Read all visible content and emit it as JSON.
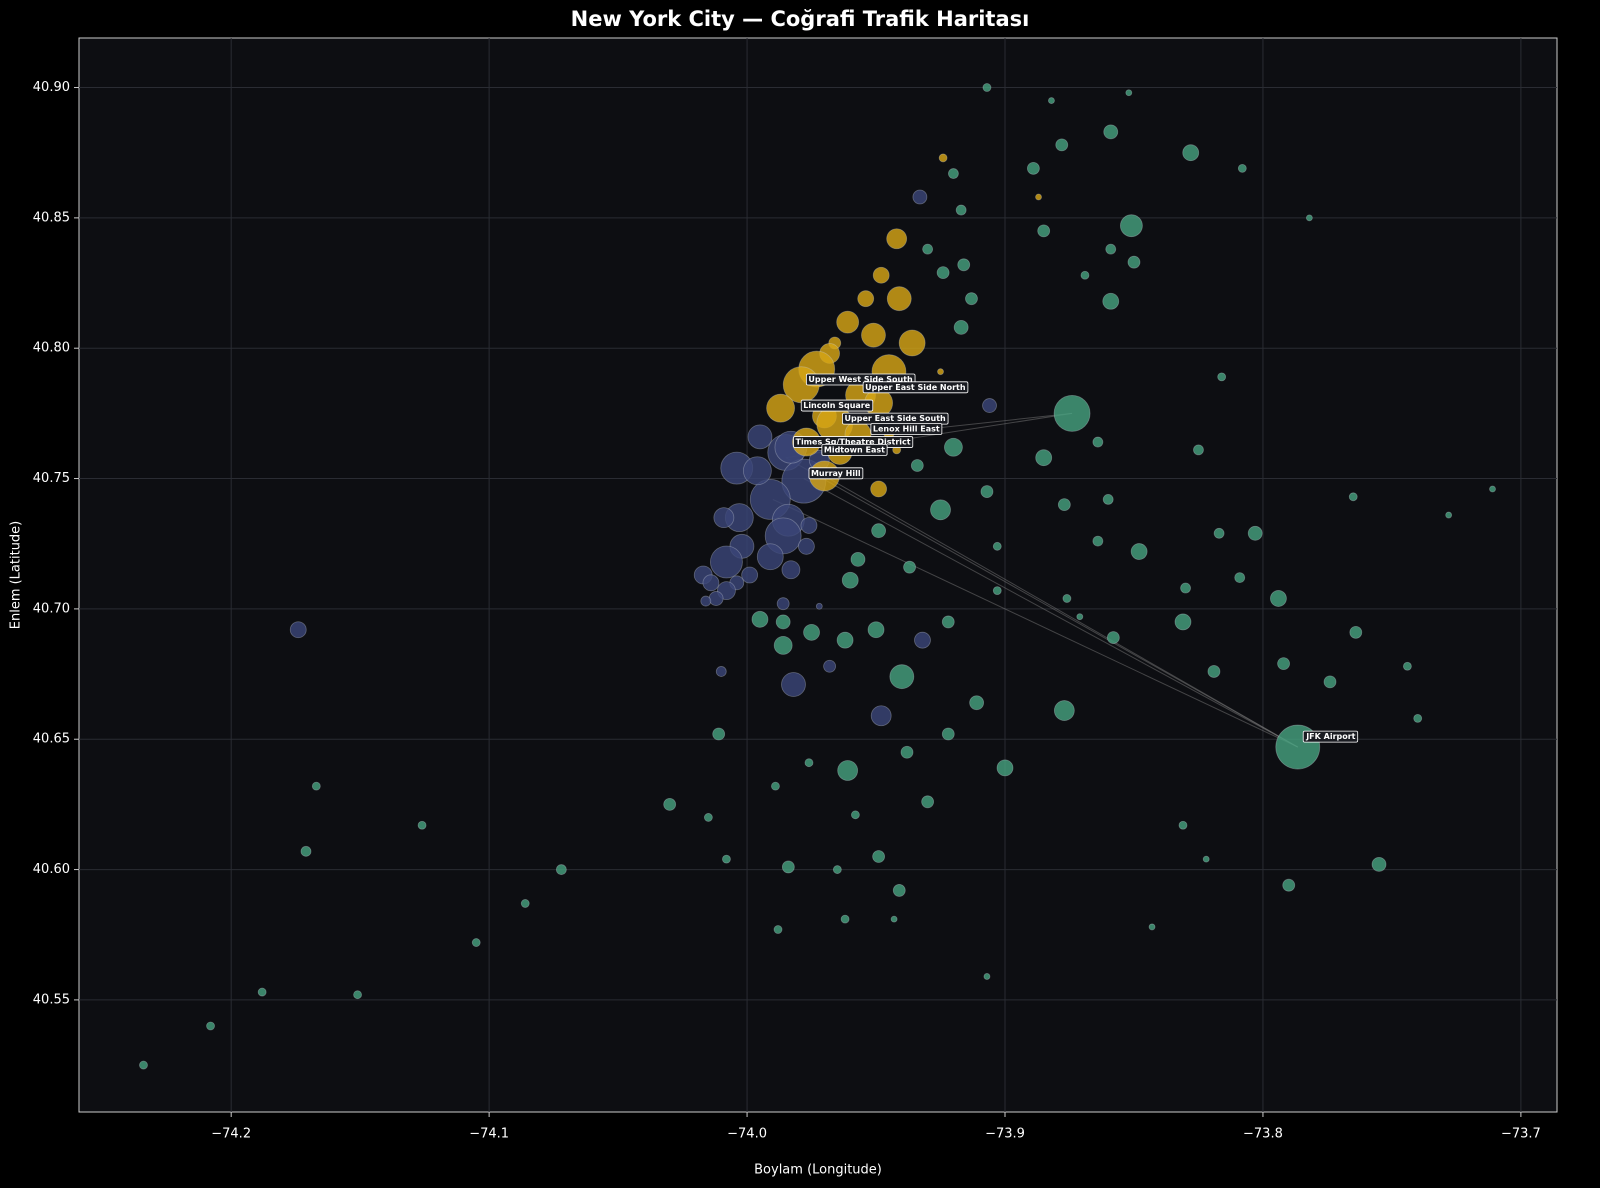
{
  "chart_data": {
    "type": "bubble",
    "title": "New York City — Coğrafi Trafik Haritası",
    "x_label": "Boylam (Longitude)",
    "y_label": "Enlem (Latitude)",
    "xlim": [
      -74.259,
      -73.686
    ],
    "ylim": [
      40.507,
      40.919
    ],
    "xticks": [
      {
        "value": -74.2,
        "label": "−74.2"
      },
      {
        "value": -74.1,
        "label": "−74.1"
      },
      {
        "value": -74.0,
        "label": "−74.0"
      },
      {
        "value": -73.9,
        "label": "−73.9"
      },
      {
        "value": -73.8,
        "label": "−73.8"
      },
      {
        "value": -73.7,
        "label": "−73.7"
      }
    ],
    "yticks": [
      40.55,
      {
        "value": 40.6,
        "label": "40.60"
      },
      40.65,
      {
        "value": 40.7,
        "label": "40.70"
      },
      40.75,
      {
        "value": 40.8,
        "label": "40.80"
      },
      40.85,
      {
        "value": 40.9,
        "label": "40.90"
      }
    ],
    "grid": true,
    "links": [
      {
        "from": [
          -73.7865,
          40.647
        ],
        "to": [
          -73.985,
          40.758
        ]
      },
      {
        "from": [
          -73.7865,
          40.647
        ],
        "to": [
          -73.978,
          40.75
        ]
      },
      {
        "from": [
          -73.7865,
          40.647
        ],
        "to": [
          -73.97,
          40.751
        ]
      },
      {
        "from": [
          -73.7865,
          40.647
        ],
        "to": [
          -73.99,
          40.742
        ]
      },
      {
        "from": [
          -73.874,
          40.775
        ],
        "to": [
          -73.985,
          40.758
        ]
      },
      {
        "from": [
          -73.874,
          40.775
        ],
        "to": [
          -73.977,
          40.764
        ]
      }
    ],
    "series": [
      {
        "color": "#45a07e",
        "x": [
          -73.7865,
          -73.874,
          -73.851,
          -73.859,
          -73.828,
          -73.889,
          -73.878,
          -73.859,
          -73.917,
          -73.913,
          -73.924,
          -73.92,
          -73.885,
          -73.877,
          -73.925,
          -73.907,
          -73.848,
          -73.803,
          -73.794,
          -73.831,
          -73.819,
          -73.792,
          -73.774,
          -73.764,
          -73.755,
          -73.79,
          -73.877,
          -73.9,
          -73.911,
          -73.94,
          -73.961,
          -73.975,
          -73.986,
          -73.995,
          -73.986,
          -73.962,
          -73.95,
          -73.96,
          -73.957,
          -73.949,
          -73.937,
          -73.922,
          -74.03,
          -74.072,
          -74.171,
          -74.234,
          -74.208,
          -74.167,
          -74.126,
          -74.086,
          -74.105,
          -74.188,
          -74.151,
          -73.984,
          -73.949,
          -73.941,
          -73.938,
          -73.93,
          -73.922,
          -74.011,
          -73.858,
          -73.83,
          -73.809,
          -73.817,
          -73.825,
          -73.816,
          -73.808,
          -73.782,
          -73.852,
          -73.907,
          -73.882,
          -73.864,
          -73.86,
          -73.864,
          -73.765,
          -73.74,
          -73.744,
          -73.711,
          -73.728,
          -73.916,
          -73.93,
          -73.92,
          -73.917,
          -73.885,
          -73.869,
          -73.85,
          -73.859,
          -73.831,
          -73.822,
          -73.843,
          -73.907,
          -73.962,
          -73.988,
          -73.965,
          -73.958,
          -74.008,
          -74.015,
          -73.989,
          -73.976,
          -73.943,
          -73.871,
          -73.876,
          -73.903,
          -73.903,
          -73.934
        ],
        "values": [
          40.647,
          40.775,
          40.847,
          40.883,
          40.875,
          40.869,
          40.878,
          40.818,
          40.808,
          40.819,
          40.829,
          40.762,
          40.758,
          40.74,
          40.738,
          40.745,
          40.722,
          40.729,
          40.704,
          40.695,
          40.676,
          40.679,
          40.672,
          40.691,
          40.602,
          40.594,
          40.661,
          40.639,
          40.664,
          40.674,
          40.638,
          40.691,
          40.686,
          40.696,
          40.695,
          40.688,
          40.692,
          40.711,
          40.719,
          40.73,
          40.716,
          40.695,
          40.625,
          40.6,
          40.607,
          40.525,
          40.54,
          40.632,
          40.617,
          40.587,
          40.572,
          40.553,
          40.552,
          40.601,
          40.605,
          40.592,
          40.645,
          40.626,
          40.652,
          40.652,
          40.689,
          40.708,
          40.712,
          40.729,
          40.761,
          40.789,
          40.869,
          40.85,
          40.898,
          40.9,
          40.895,
          40.764,
          40.742,
          40.726,
          40.743,
          40.658,
          40.678,
          40.746,
          40.736,
          40.832,
          40.838,
          40.867,
          40.853,
          40.845,
          40.828,
          40.833,
          40.838,
          40.617,
          40.604,
          40.578,
          40.559,
          40.581,
          40.577,
          40.6,
          40.621,
          40.604,
          40.62,
          40.632,
          40.641,
          40.581,
          40.697,
          40.704,
          40.707,
          40.724,
          40.755
        ],
        "sizes": [
          22,
          18,
          11,
          7,
          8,
          6,
          6,
          8,
          7,
          6,
          6,
          9,
          8,
          6,
          10,
          6,
          8,
          7,
          8,
          8,
          6,
          6,
          6,
          6,
          7,
          6,
          10,
          8,
          7,
          12,
          10,
          8,
          9,
          8,
          7,
          8,
          8,
          8,
          7,
          7,
          6,
          6,
          6,
          5,
          5,
          4,
          4,
          4,
          4,
          4,
          4,
          4,
          4,
          6,
          6,
          6,
          6,
          6,
          6,
          6,
          6,
          5,
          5,
          5,
          5,
          4,
          4,
          3,
          3,
          4,
          3,
          5,
          5,
          5,
          4,
          4,
          4,
          3,
          3,
          6,
          5,
          5,
          5,
          6,
          4,
          6,
          5,
          4,
          3,
          3,
          3,
          4,
          4,
          4,
          4,
          4,
          4,
          4,
          4,
          3,
          3,
          4,
          4,
          4,
          6
        ]
      },
      {
        "color": "#3a4678",
        "x": [
          -74.174,
          -73.933,
          -73.906,
          -73.932,
          -73.948,
          -73.982,
          -73.968,
          -74.01,
          -73.986,
          -73.972,
          -74.004,
          -73.995,
          -73.985,
          -73.978,
          -73.991,
          -73.984,
          -73.986,
          -74.003,
          -74.009,
          -74.002,
          -73.991,
          -74.008,
          -73.999,
          -73.983,
          -73.977,
          -73.976,
          -74.017,
          -74.014,
          -74.004,
          -74.008,
          -74.012,
          -74.016,
          -73.996,
          -73.972,
          -73.983
        ],
        "values": [
          40.692,
          40.858,
          40.778,
          40.688,
          40.659,
          40.671,
          40.678,
          40.676,
          40.702,
          40.701,
          40.754,
          40.766,
          40.76,
          40.749,
          40.742,
          40.734,
          40.728,
          40.735,
          40.735,
          40.724,
          40.72,
          40.718,
          40.713,
          40.715,
          40.724,
          40.732,
          40.713,
          40.71,
          40.71,
          40.707,
          40.704,
          40.703,
          40.753,
          40.757,
          40.762
        ],
        "sizes": [
          8,
          7,
          7,
          8,
          10,
          12,
          6,
          5,
          6,
          3,
          16,
          12,
          18,
          22,
          20,
          16,
          18,
          14,
          10,
          12,
          13,
          16,
          8,
          9,
          8,
          8,
          9,
          8,
          7,
          9,
          7,
          5,
          14,
          10,
          16
        ]
      },
      {
        "color": "#d6a516",
        "x": [
          -73.942,
          -73.948,
          -73.954,
          -73.941,
          -73.961,
          -73.951,
          -73.936,
          -73.966,
          -73.968,
          -73.973,
          -73.945,
          -73.979,
          -73.956,
          -73.949,
          -73.987,
          -73.97,
          -73.977,
          -73.966,
          -73.957,
          -73.964,
          -73.97,
          -73.949,
          -73.924,
          -73.887,
          -73.925,
          -73.942,
          -73.945
        ],
        "values": [
          40.842,
          40.828,
          40.819,
          40.819,
          40.81,
          40.805,
          40.802,
          40.802,
          40.798,
          40.792,
          40.791,
          40.786,
          40.782,
          40.779,
          40.777,
          40.774,
          40.764,
          40.771,
          40.767,
          40.76,
          40.751,
          40.746,
          40.873,
          40.858,
          40.791,
          40.761,
          40.768
        ],
        "sizes": [
          10,
          8,
          8,
          12,
          11,
          12,
          13,
          6,
          10,
          18,
          17,
          18,
          15,
          14,
          14,
          12,
          14,
          18,
          13,
          12,
          15,
          8,
          4,
          3,
          3,
          4,
          6
        ]
      }
    ],
    "annotations": [
      {
        "text": "Upper West Side South",
        "x": -73.977,
        "y": 40.788
      },
      {
        "text": "Upper East Side North",
        "x": -73.955,
        "y": 40.785
      },
      {
        "text": "Lincoln Square",
        "x": -73.979,
        "y": 40.778
      },
      {
        "text": "Upper East Side South",
        "x": -73.963,
        "y": 40.773
      },
      {
        "text": "Lenox Hill East",
        "x": -73.952,
        "y": 40.769
      },
      {
        "text": "Times Sq/Theatre District",
        "x": -73.982,
        "y": 40.764
      },
      {
        "text": "Midtown East",
        "x": -73.971,
        "y": 40.761
      },
      {
        "text": "Murray Hill",
        "x": -73.976,
        "y": 40.752
      },
      {
        "text": "JFK Airport",
        "x": -73.784,
        "y": 40.651
      }
    ]
  }
}
